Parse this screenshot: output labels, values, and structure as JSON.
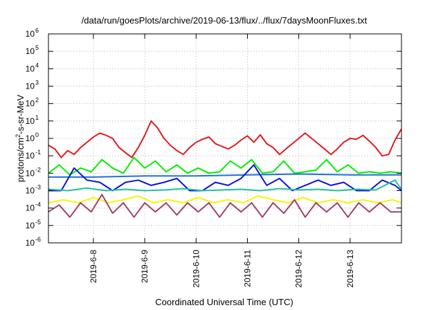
{
  "chart_data": {
    "type": "line",
    "title": "/data/run/goesPlots/archive/2019-06-13/flux/../flux/7daysMoonFluxes.txt",
    "xlabel": "Coordinated Universal Time (UTC)",
    "ylabel": "protons/cm²-s-sr-MeV",
    "y_scale": "log",
    "ylim": [
      1e-06,
      1000000.0
    ],
    "y_ticks": [
      {
        "base": "10",
        "exp": "-6"
      },
      {
        "base": "10",
        "exp": "-5"
      },
      {
        "base": "10",
        "exp": "-4"
      },
      {
        "base": "10",
        "exp": "-3"
      },
      {
        "base": "10",
        "exp": "-2"
      },
      {
        "base": "10",
        "exp": "-1"
      },
      {
        "base": "10",
        "exp": "0"
      },
      {
        "base": "10",
        "exp": "1"
      },
      {
        "base": "10",
        "exp": "2"
      },
      {
        "base": "10",
        "exp": "3"
      },
      {
        "base": "10",
        "exp": "4"
      },
      {
        "base": "10",
        "exp": "5"
      },
      {
        "base": "10",
        "exp": "6"
      }
    ],
    "xlim": [
      "2019-06-07T03:00",
      "2019-06-14T00:00"
    ],
    "x_ticks": [
      "2019-6-8",
      "2019-6-9",
      "2019-6-10",
      "2019-6-11",
      "2019-6-12",
      "2019-6-13"
    ],
    "grid": true,
    "series": [
      {
        "color": "#e31a1c",
        "x": [
          "2019-06-07T03:00",
          "2019-06-07T06:00",
          "2019-06-07T09:00",
          "2019-06-07T12:00",
          "2019-06-07T15:00",
          "2019-06-07T18:00",
          "2019-06-07T21:00",
          "2019-06-08T00:00",
          "2019-06-08T03:00",
          "2019-06-08T06:00",
          "2019-06-08T09:00",
          "2019-06-08T12:00",
          "2019-06-08T15:00",
          "2019-06-08T18:00",
          "2019-06-08T21:00",
          "2019-06-09T00:00",
          "2019-06-09T03:00",
          "2019-06-09T06:00",
          "2019-06-09T09:00",
          "2019-06-09T12:00",
          "2019-06-09T15:00",
          "2019-06-09T18:00",
          "2019-06-09T21:00",
          "2019-06-10T00:00",
          "2019-06-10T03:00",
          "2019-06-10T06:00",
          "2019-06-10T09:00",
          "2019-06-10T12:00",
          "2019-06-10T15:00",
          "2019-06-10T18:00",
          "2019-06-10T21:00",
          "2019-06-11T00:00",
          "2019-06-11T03:00",
          "2019-06-11T06:00",
          "2019-06-11T09:00",
          "2019-06-11T12:00",
          "2019-06-11T15:00",
          "2019-06-11T18:00",
          "2019-06-11T21:00",
          "2019-06-12T00:00",
          "2019-06-12T03:00",
          "2019-06-12T06:00",
          "2019-06-12T09:00",
          "2019-06-12T12:00",
          "2019-06-12T15:00",
          "2019-06-12T18:00",
          "2019-06-12T21:00",
          "2019-06-13T00:00",
          "2019-06-13T03:00",
          "2019-06-13T06:00",
          "2019-06-13T09:00",
          "2019-06-13T12:00",
          "2019-06-13T15:00",
          "2019-06-13T18:00",
          "2019-06-13T21:00",
          "2019-06-14T00:00"
        ],
        "values": [
          0.4,
          0.25,
          0.08,
          0.2,
          0.12,
          0.3,
          0.6,
          1.2,
          2.0,
          1.5,
          1.0,
          0.3,
          0.15,
          0.08,
          0.3,
          1.5,
          10.0,
          4.0,
          1.0,
          0.4,
          0.2,
          0.12,
          0.3,
          0.6,
          0.9,
          1.2,
          0.5,
          0.35,
          0.25,
          0.4,
          0.8,
          1.4,
          0.6,
          1.6,
          0.5,
          0.3,
          0.12,
          0.25,
          0.5,
          1.0,
          2.0,
          1.0,
          0.5,
          0.25,
          0.12,
          0.25,
          0.6,
          1.0,
          0.9,
          1.5,
          0.7,
          0.3,
          0.1,
          0.12,
          0.8,
          3.5
        ]
      },
      {
        "color": "#00ee00",
        "x": [
          "2019-06-07T03:00",
          "2019-06-07T08:00",
          "2019-06-07T13:00",
          "2019-06-07T18:00",
          "2019-06-07T23:00",
          "2019-06-08T04:00",
          "2019-06-08T09:00",
          "2019-06-08T14:00",
          "2019-06-08T19:00",
          "2019-06-09T00:00",
          "2019-06-09T05:00",
          "2019-06-09T10:00",
          "2019-06-09T15:00",
          "2019-06-09T20:00",
          "2019-06-10T01:00",
          "2019-06-10T06:00",
          "2019-06-10T11:00",
          "2019-06-10T16:00",
          "2019-06-10T21:00",
          "2019-06-11T02:00",
          "2019-06-11T07:00",
          "2019-06-11T12:00",
          "2019-06-11T17:00",
          "2019-06-11T22:00",
          "2019-06-12T03:00",
          "2019-06-12T08:00",
          "2019-06-12T13:00",
          "2019-06-12T18:00",
          "2019-06-12T23:00",
          "2019-06-13T04:00",
          "2019-06-13T09:00",
          "2019-06-13T14:00",
          "2019-06-13T19:00",
          "2019-06-14T00:00"
        ],
        "values": [
          0.01,
          0.03,
          0.008,
          0.02,
          0.012,
          0.06,
          0.02,
          0.01,
          0.08,
          0.02,
          0.05,
          0.012,
          0.03,
          0.01,
          0.02,
          0.01,
          0.012,
          0.05,
          0.02,
          0.06,
          0.01,
          0.012,
          0.05,
          0.01,
          0.012,
          0.015,
          0.06,
          0.012,
          0.03,
          0.01,
          0.012,
          0.01,
          0.012,
          0.01
        ]
      },
      {
        "color": "#1e6fe0",
        "x": [
          "2019-06-07T03:00",
          "2019-06-08T00:00",
          "2019-06-09T00:00",
          "2019-06-10T00:00",
          "2019-06-11T00:00",
          "2019-06-12T00:00",
          "2019-06-13T00:00",
          "2019-06-14T00:00"
        ],
        "values": [
          0.006,
          0.006,
          0.007,
          0.007,
          0.008,
          0.009,
          0.008,
          0.008
        ]
      },
      {
        "color": "#0a14d6",
        "x": [
          "2019-06-07T03:00",
          "2019-06-07T09:00",
          "2019-06-07T15:00",
          "2019-06-07T21:00",
          "2019-06-08T03:00",
          "2019-06-08T09:00",
          "2019-06-08T15:00",
          "2019-06-08T21:00",
          "2019-06-09T03:00",
          "2019-06-09T09:00",
          "2019-06-09T15:00",
          "2019-06-09T21:00",
          "2019-06-10T03:00",
          "2019-06-10T09:00",
          "2019-06-10T15:00",
          "2019-06-10T21:00",
          "2019-06-11T03:00",
          "2019-06-11T09:00",
          "2019-06-11T15:00",
          "2019-06-11T21:00",
          "2019-06-12T03:00",
          "2019-06-12T09:00",
          "2019-06-12T15:00",
          "2019-06-12T21:00",
          "2019-06-13T03:00",
          "2019-06-13T09:00",
          "2019-06-13T15:00",
          "2019-06-13T21:00",
          "2019-06-14T00:00"
        ],
        "values": [
          0.001,
          0.001,
          0.02,
          0.004,
          0.003,
          0.001,
          0.003,
          0.004,
          0.002,
          0.003,
          0.005,
          0.001,
          0.001,
          0.003,
          0.002,
          0.005,
          0.03,
          0.002,
          0.005,
          0.001,
          0.002,
          0.004,
          0.002,
          0.003,
          0.001,
          0.001,
          0.004,
          0.002,
          0.001
        ]
      },
      {
        "color": "#20c0a0",
        "x": [
          "2019-06-07T03:00",
          "2019-06-07T12:00",
          "2019-06-07T21:00",
          "2019-06-08T06:00",
          "2019-06-08T15:00",
          "2019-06-09T00:00",
          "2019-06-09T09:00",
          "2019-06-09T18:00",
          "2019-06-10T03:00",
          "2019-06-10T12:00",
          "2019-06-10T21:00",
          "2019-06-11T06:00",
          "2019-06-11T15:00",
          "2019-06-12T00:00",
          "2019-06-12T09:00",
          "2019-06-12T18:00",
          "2019-06-13T03:00",
          "2019-06-13T12:00",
          "2019-06-13T21:00",
          "2019-06-14T00:00"
        ],
        "values": [
          0.0012,
          0.001,
          0.0014,
          0.001,
          0.0012,
          0.001,
          0.0011,
          0.0013,
          0.001,
          0.0011,
          0.0012,
          0.001,
          0.0013,
          0.0011,
          0.0012,
          0.001,
          0.0012,
          0.0011,
          0.004,
          0.0012
        ]
      },
      {
        "color": "#f5f500",
        "x": [
          "2019-06-07T03:00",
          "2019-06-07T10:00",
          "2019-06-07T17:00",
          "2019-06-08T00:00",
          "2019-06-08T07:00",
          "2019-06-08T14:00",
          "2019-06-08T21:00",
          "2019-06-09T04:00",
          "2019-06-09T11:00",
          "2019-06-09T18:00",
          "2019-06-10T01:00",
          "2019-06-10T08:00",
          "2019-06-10T15:00",
          "2019-06-10T22:00",
          "2019-06-11T05:00",
          "2019-06-11T12:00",
          "2019-06-11T19:00",
          "2019-06-12T02:00",
          "2019-06-12T09:00",
          "2019-06-12T16:00",
          "2019-06-12T23:00",
          "2019-06-13T06:00",
          "2019-06-13T13:00",
          "2019-06-13T20:00",
          "2019-06-14T00:00"
        ],
        "values": [
          0.0002,
          0.0003,
          0.0002,
          0.0004,
          0.0002,
          0.0003,
          0.0005,
          0.0002,
          0.0003,
          0.0002,
          0.0004,
          0.0002,
          0.0003,
          0.0002,
          0.0005,
          0.0003,
          0.0002,
          0.0004,
          0.0002,
          0.0003,
          0.0002,
          0.0003,
          0.0002,
          0.0003,
          0.0002
        ]
      },
      {
        "color": "#a0406e",
        "x": [
          "2019-06-07T03:00",
          "2019-06-07T08:00",
          "2019-06-07T13:00",
          "2019-06-07T18:00",
          "2019-06-07T23:00",
          "2019-06-08T04:00",
          "2019-06-08T09:00",
          "2019-06-08T14:00",
          "2019-06-08T19:00",
          "2019-06-09T00:00",
          "2019-06-09T05:00",
          "2019-06-09T10:00",
          "2019-06-09T15:00",
          "2019-06-09T20:00",
          "2019-06-10T01:00",
          "2019-06-10T06:00",
          "2019-06-10T11:00",
          "2019-06-10T16:00",
          "2019-06-10T21:00",
          "2019-06-11T02:00",
          "2019-06-11T07:00",
          "2019-06-11T12:00",
          "2019-06-11T17:00",
          "2019-06-11T22:00",
          "2019-06-12T03:00",
          "2019-06-12T08:00",
          "2019-06-12T13:00",
          "2019-06-12T18:00",
          "2019-06-12T23:00",
          "2019-06-13T04:00",
          "2019-06-13T09:00",
          "2019-06-13T14:00",
          "2019-06-13T19:00",
          "2019-06-14T00:00"
        ],
        "values": [
          6e-05,
          0.00015,
          3e-05,
          0.0002,
          6e-05,
          0.0006,
          5e-05,
          0.0002,
          3e-05,
          0.0002,
          6e-05,
          0.0002,
          4e-05,
          0.0002,
          6e-05,
          0.0002,
          3e-05,
          0.0002,
          6e-05,
          0.0002,
          3e-05,
          0.0002,
          5e-05,
          0.0003,
          3e-05,
          0.0002,
          6e-05,
          0.0002,
          3e-05,
          0.0002,
          6e-05,
          0.0002,
          6e-05,
          6e-05
        ]
      }
    ]
  }
}
